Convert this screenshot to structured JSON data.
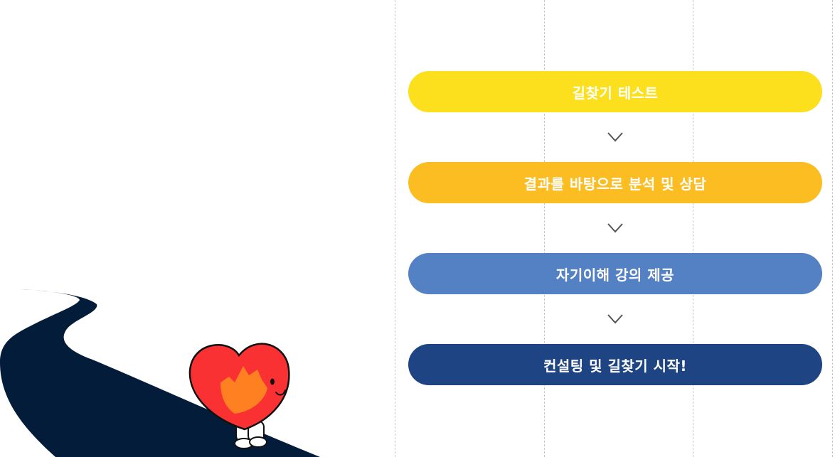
{
  "steps": [
    {
      "label": "길찾기 테스트",
      "color": "#fde01d"
    },
    {
      "label": "결과를 바탕으로 분석 및 상담",
      "color": "#fbbd22"
    },
    {
      "label": "자기이해 강의 제공",
      "color": "#5480c4"
    },
    {
      "label": "컨설팅 및 길찾기 시작!",
      "color": "#1f4484"
    }
  ],
  "arrow_icon": "chevron-down-icon",
  "illustration": {
    "road_color": "#021c3a",
    "heart_color": "#fa3133",
    "flame_color": "#ff8a1e"
  }
}
